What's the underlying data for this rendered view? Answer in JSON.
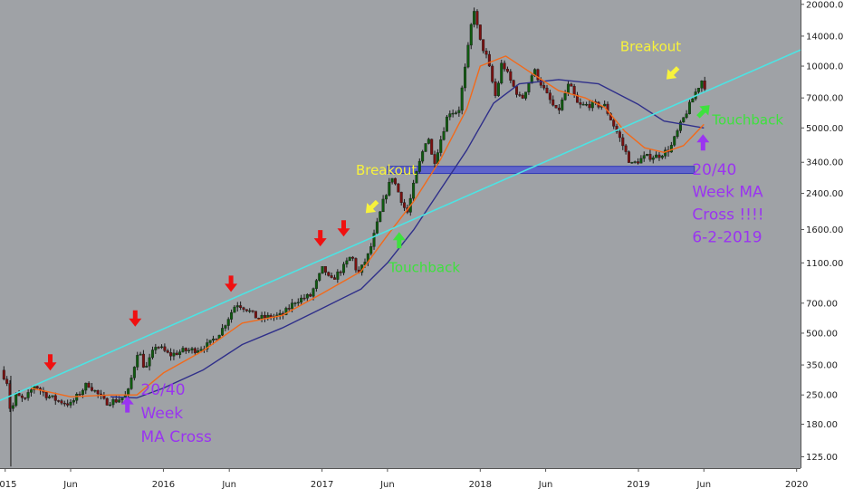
{
  "chart_data": {
    "type": "candlestick",
    "scale": "log",
    "ylim": [
      110,
      21000
    ],
    "xlim": [
      "2014-12-20",
      "2020-01-10"
    ],
    "y_ticks": [
      "20000.00",
      "14000.00",
      "10000.00",
      "7000.00",
      "5000.00",
      "3400.00",
      "2400.00",
      "1600.00",
      "1100.00",
      "700.00",
      "500.00",
      "350.00",
      "250.00",
      "180.00",
      "125.00"
    ],
    "x_ticks": [
      {
        "label": "2015",
        "date": "2015-01-01"
      },
      {
        "label": "Jun",
        "date": "2015-06-01"
      },
      {
        "label": "2016",
        "date": "2016-01-01"
      },
      {
        "label": "Jun",
        "date": "2016-06-01"
      },
      {
        "label": "2017",
        "date": "2017-01-01"
      },
      {
        "label": "Jun",
        "date": "2017-06-01"
      },
      {
        "label": "2018",
        "date": "2018-01-01"
      },
      {
        "label": "Jun",
        "date": "2018-06-01"
      },
      {
        "label": "2019",
        "date": "2019-01-01"
      },
      {
        "label": "Jun",
        "date": "2019-06-01"
      },
      {
        "label": "2020",
        "date": "2020-01-01"
      }
    ],
    "price_path": [
      [
        "2014-12-22",
        330
      ],
      [
        "2015-01-05",
        290
      ],
      [
        "2015-01-14",
        200
      ],
      [
        "2015-01-25",
        250
      ],
      [
        "2015-02-15",
        235
      ],
      [
        "2015-03-10",
        280
      ],
      [
        "2015-04-05",
        250
      ],
      [
        "2015-05-01",
        235
      ],
      [
        "2015-06-01",
        225
      ],
      [
        "2015-07-10",
        285
      ],
      [
        "2015-08-20",
        230
      ],
      [
        "2015-09-15",
        235
      ],
      [
        "2015-10-10",
        250
      ],
      [
        "2015-11-04",
        420
      ],
      [
        "2015-11-20",
        330
      ],
      [
        "2015-12-15",
        440
      ],
      [
        "2016-01-15",
        390
      ],
      [
        "2016-02-15",
        410
      ],
      [
        "2016-03-15",
        415
      ],
      [
        "2016-04-15",
        440
      ],
      [
        "2016-05-15",
        520
      ],
      [
        "2016-06-17",
        700
      ],
      [
        "2016-07-10",
        660
      ],
      [
        "2016-08-05",
        590
      ],
      [
        "2016-09-01",
        600
      ],
      [
        "2016-10-01",
        610
      ],
      [
        "2016-11-01",
        720
      ],
      [
        "2016-12-05",
        760
      ],
      [
        "2017-01-04",
        1050
      ],
      [
        "2017-01-20",
        890
      ],
      [
        "2017-02-20",
        1050
      ],
      [
        "2017-03-10",
        1200
      ],
      [
        "2017-03-25",
        960
      ],
      [
        "2017-04-20",
        1230
      ],
      [
        "2017-05-25",
        2300
      ],
      [
        "2017-06-12",
        2900
      ],
      [
        "2017-07-16",
        1900
      ],
      [
        "2017-08-05",
        2900
      ],
      [
        "2017-09-02",
        4700
      ],
      [
        "2017-09-15",
        3300
      ],
      [
        "2017-10-20",
        6000
      ],
      [
        "2017-11-12",
        6000
      ],
      [
        "2017-12-01",
        11000
      ],
      [
        "2017-12-17",
        19500
      ],
      [
        "2017-12-30",
        13500
      ],
      [
        "2018-01-17",
        10900
      ],
      [
        "2018-02-06",
        7000
      ],
      [
        "2018-02-20",
        10500
      ],
      [
        "2018-03-15",
        8200
      ],
      [
        "2018-04-06",
        6800
      ],
      [
        "2018-05-05",
        9600
      ],
      [
        "2018-06-01",
        7400
      ],
      [
        "2018-06-28",
        5900
      ],
      [
        "2018-07-25",
        8200
      ],
      [
        "2018-08-15",
        6400
      ],
      [
        "2018-09-15",
        6500
      ],
      [
        "2018-10-15",
        6400
      ],
      [
        "2018-11-20",
        4400
      ],
      [
        "2018-12-15",
        3300
      ],
      [
        "2019-01-15",
        3600
      ],
      [
        "2019-02-15",
        3650
      ],
      [
        "2019-03-15",
        3950
      ],
      [
        "2019-04-05",
        5000
      ],
      [
        "2019-05-12",
        7400
      ],
      [
        "2019-05-28",
        8600
      ],
      [
        "2019-06-05",
        7800
      ]
    ],
    "ma_short_color": "#f26a1b",
    "ma_long_color": "#2f2f8a",
    "ma_short": [
      [
        "2015-03-01",
        270
      ],
      [
        "2015-06-01",
        245
      ],
      [
        "2015-09-01",
        250
      ],
      [
        "2015-11-01",
        250
      ],
      [
        "2016-01-01",
        320
      ],
      [
        "2016-04-01",
        410
      ],
      [
        "2016-07-01",
        560
      ],
      [
        "2016-10-01",
        610
      ],
      [
        "2017-01-01",
        780
      ],
      [
        "2017-04-01",
        1000
      ],
      [
        "2017-06-01",
        1500
      ],
      [
        "2017-08-01",
        2200
      ],
      [
        "2017-10-01",
        3500
      ],
      [
        "2017-12-01",
        6200
      ],
      [
        "2018-01-01",
        10000
      ],
      [
        "2018-03-01",
        11200
      ],
      [
        "2018-05-01",
        9200
      ],
      [
        "2018-07-01",
        7600
      ],
      [
        "2018-09-01",
        7000
      ],
      [
        "2018-10-15",
        6300
      ],
      [
        "2018-12-01",
        4800
      ],
      [
        "2019-01-15",
        4000
      ],
      [
        "2019-03-01",
        3800
      ],
      [
        "2019-04-15",
        4100
      ],
      [
        "2019-06-01",
        5200
      ]
    ],
    "ma_long": [
      [
        "2015-09-01",
        245
      ],
      [
        "2015-11-01",
        242
      ],
      [
        "2016-01-01",
        270
      ],
      [
        "2016-04-01",
        330
      ],
      [
        "2016-07-01",
        440
      ],
      [
        "2016-10-01",
        530
      ],
      [
        "2017-01-01",
        660
      ],
      [
        "2017-04-01",
        820
      ],
      [
        "2017-06-01",
        1100
      ],
      [
        "2017-08-01",
        1600
      ],
      [
        "2017-10-01",
        2500
      ],
      [
        "2017-12-01",
        3900
      ],
      [
        "2018-02-01",
        6600
      ],
      [
        "2018-04-01",
        8200
      ],
      [
        "2018-07-01",
        8600
      ],
      [
        "2018-10-01",
        8200
      ],
      [
        "2019-01-01",
        6500
      ],
      [
        "2019-03-01",
        5400
      ],
      [
        "2019-06-01",
        5000
      ]
    ],
    "trendline": {
      "color": "#4de3e3",
      "from": [
        "2014-12-20",
        235
      ],
      "to": [
        "2020-01-10",
        12000
      ]
    },
    "support_zone": {
      "from": "2017-06-01",
      "to": "2019-05-10",
      "low": 3000,
      "high": 3250,
      "color": "#4a4fd6"
    },
    "annotations": [
      {
        "text": "Breakout",
        "color": "#f7f23c",
        "date": "2017-03-20",
        "value": 2950,
        "size": 15
      },
      {
        "text": "Breakout",
        "color": "#f7f23c",
        "date": "2018-11-20",
        "value": 11800,
        "size": 15
      },
      {
        "text": "Touchback",
        "color": "#3ee13e",
        "date": "2017-06-04",
        "value": 990,
        "size": 15
      },
      {
        "text": "Touchback",
        "color": "#3ee13e",
        "date": "2019-06-20",
        "value": 5200,
        "size": 15
      },
      {
        "text": "20/40",
        "color": "#9a35f0",
        "date": "2015-11-10",
        "value": 250,
        "size": 17
      },
      {
        "text": "Week",
        "color": "#9a35f0",
        "date": "2015-11-10",
        "value": 192,
        "size": 17
      },
      {
        "text": "MA Cross",
        "color": "#9a35f0",
        "date": "2015-11-10",
        "value": 148,
        "size": 17
      },
      {
        "text": "20/40",
        "color": "#9a35f0",
        "date": "2019-05-05",
        "value": 2950,
        "size": 17
      },
      {
        "text": "Week MA",
        "color": "#9a35f0",
        "date": "2019-05-05",
        "value": 2300,
        "size": 17
      },
      {
        "text": "Cross !!!!",
        "color": "#9a35f0",
        "date": "2019-05-05",
        "value": 1790,
        "size": 17
      },
      {
        "text": "6-2-2019",
        "color": "#9a35f0",
        "date": "2019-05-05",
        "value": 1390,
        "size": 17
      }
    ],
    "arrows": [
      {
        "dir": "down",
        "color": "#f01010",
        "date": "2015-04-15",
        "value": 360
      },
      {
        "dir": "down",
        "color": "#f01010",
        "date": "2015-10-28",
        "value": 590
      },
      {
        "dir": "down",
        "color": "#f01010",
        "date": "2016-06-05",
        "value": 870
      },
      {
        "dir": "down",
        "color": "#f01010",
        "date": "2016-12-28",
        "value": 1450
      },
      {
        "dir": "down",
        "color": "#f01010",
        "date": "2017-02-20",
        "value": 1620
      },
      {
        "dir": "down-left",
        "color": "#f7f23c",
        "date": "2017-04-25",
        "value": 2050
      },
      {
        "dir": "down-left",
        "color": "#f7f23c",
        "date": "2019-03-20",
        "value": 9200
      },
      {
        "dir": "up",
        "color": "#3ee13e",
        "date": "2017-06-28",
        "value": 1420
      },
      {
        "dir": "up-right",
        "color": "#3ee13e",
        "date": "2019-06-01",
        "value": 6050
      },
      {
        "dir": "up",
        "color": "#9a35f0",
        "date": "2015-10-10",
        "value": 225
      },
      {
        "dir": "up",
        "color": "#9a35f0",
        "date": "2019-05-30",
        "value": 4250
      }
    ]
  }
}
